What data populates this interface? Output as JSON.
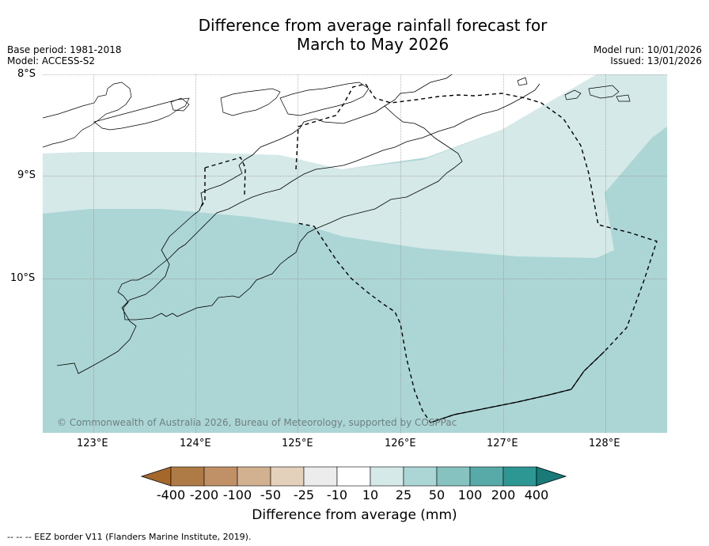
{
  "title": {
    "line1": "Difference from average rainfall forecast for",
    "line2": "March to May 2026"
  },
  "meta": {
    "base_period": "Base period: 1981-2018",
    "model": "Model: ACCESS-S2",
    "model_run": "Model run: 10/01/2026",
    "issued": "Issued: 13/01/2026"
  },
  "map": {
    "lat_labels": [
      "8°S",
      "9°S",
      "10°S"
    ],
    "lon_labels": [
      "123°E",
      "124°E",
      "125°E",
      "126°E",
      "127°E",
      "128°E"
    ],
    "copyright": "© Commonwealth of Australia 2026, Bureau of Meteorology, supported by COSPPac",
    "zones": [
      {
        "name": "10 to 25",
        "color": "#d4e9e8"
      },
      {
        "name": "25 to 50",
        "color": "#acd6d5"
      },
      {
        "name": "-10 to 10",
        "color": "#ffffff"
      }
    ]
  },
  "colorbar": {
    "labels": [
      "-400",
      "-200",
      "-100",
      "-50",
      "-25",
      "-10",
      "10",
      "25",
      "50",
      "100",
      "200",
      "400"
    ],
    "colors": [
      "#a5682a",
      "#ae7a45",
      "#c09067",
      "#d1b190",
      "#e3d1bc",
      "#ececec",
      "#ffffff",
      "#d4e9e8",
      "#acd6d5",
      "#86c2c0",
      "#57aaa8",
      "#2d9793",
      "#1a7a78"
    ],
    "title": "Difference from average (mm)"
  },
  "footer": "--  --  -- EEZ border V11 (Flanders Marine Institute, 2019)."
}
